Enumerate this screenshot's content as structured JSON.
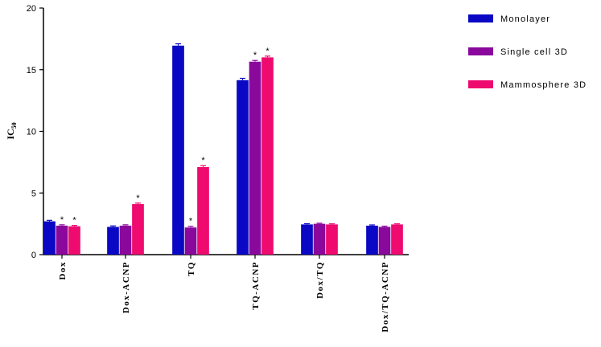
{
  "chart_data": {
    "type": "bar",
    "categories": [
      "Dox",
      "Dox-ACNP",
      "TQ",
      "TQ-ACNP",
      "Dox/TQ",
      "Dox/TQ-ACNP"
    ],
    "series": [
      {
        "name": "Monolayer",
        "color": "#0a08c4",
        "values": [
          2.7,
          2.25,
          16.95,
          14.15,
          2.45,
          2.35
        ],
        "errors": [
          0.08,
          0.08,
          0.15,
          0.15,
          0.06,
          0.06
        ],
        "significant": [
          false,
          false,
          false,
          false,
          false,
          false
        ]
      },
      {
        "name": "Single cell 3D",
        "color": "#8a089c",
        "values": [
          2.35,
          2.35,
          2.2,
          15.65,
          2.5,
          2.25
        ],
        "errors": [
          0.07,
          0.07,
          0.1,
          0.1,
          0.05,
          0.06
        ],
        "significant": [
          true,
          false,
          true,
          true,
          false,
          false
        ]
      },
      {
        "name": "Mammosphere 3D",
        "color": "#ee0a6e",
        "values": [
          2.3,
          4.1,
          7.1,
          16.0,
          2.45,
          2.45
        ],
        "errors": [
          0.07,
          0.08,
          0.12,
          0.1,
          0.05,
          0.05
        ],
        "significant": [
          true,
          true,
          true,
          true,
          false,
          false
        ]
      }
    ],
    "ylabel": "IC",
    "ylabel_sub": "50",
    "ylim": [
      0,
      20
    ],
    "yticks": [
      0,
      5,
      10,
      15,
      20
    ],
    "grid": false,
    "legend_position": "top-right",
    "significance_marker": "*"
  }
}
